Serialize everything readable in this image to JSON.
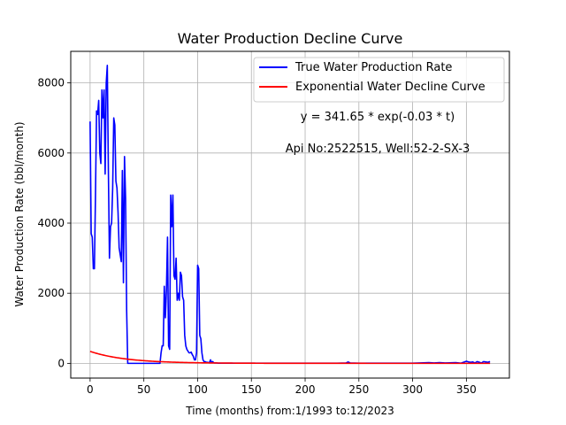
{
  "chart_data": {
    "type": "line",
    "title": "Water Production Decline Curve",
    "xlabel": "Time (months) from:1/1993 to:12/2023",
    "ylabel": "Water Production Rate (bbl/month)",
    "xlim": [
      -18,
      390
    ],
    "ylim": [
      -420,
      8900
    ],
    "xticks": [
      0,
      50,
      100,
      150,
      200,
      250,
      300,
      350
    ],
    "yticks": [
      0,
      2000,
      4000,
      6000,
      8000
    ],
    "grid": true,
    "legend_position": "top-right",
    "annotations": [
      "y = 341.65 * exp(-0.03 * t)",
      "Api No:2522515, Well:52-2-SX-3"
    ],
    "series": [
      {
        "name": "True Water Production Rate",
        "color": "#0000ff",
        "x": [
          0,
          1,
          2,
          3,
          4,
          5,
          6,
          7,
          8,
          9,
          10,
          11,
          12,
          13,
          14,
          15,
          16,
          17,
          18,
          19,
          20,
          21,
          22,
          23,
          24,
          25,
          26,
          27,
          28,
          29,
          30,
          31,
          32,
          33,
          34,
          35,
          36,
          37,
          38,
          39,
          40,
          41,
          42,
          45,
          50,
          55,
          60,
          65,
          66,
          67,
          68,
          69,
          70,
          71,
          72,
          73,
          74,
          75,
          76,
          77,
          78,
          79,
          80,
          81,
          82,
          83,
          84,
          85,
          86,
          87,
          88,
          89,
          90,
          91,
          92,
          93,
          94,
          95,
          96,
          97,
          98,
          99,
          100,
          101,
          102,
          103,
          104,
          105,
          106,
          107,
          108,
          109,
          110,
          111,
          112,
          113,
          114,
          115,
          116,
          117,
          118,
          119,
          120,
          122,
          125,
          130,
          140,
          150,
          160,
          170,
          180,
          190,
          200,
          210,
          220,
          230,
          238,
          240,
          242,
          250,
          260,
          270,
          280,
          290,
          300,
          310,
          315,
          320,
          325,
          330,
          340,
          345,
          350,
          352,
          354,
          356,
          358,
          360,
          362,
          364,
          366,
          368,
          370,
          372
        ],
        "y": [
          6900,
          3700,
          3600,
          2700,
          2700,
          4800,
          7200,
          7100,
          7500,
          6000,
          5700,
          7800,
          7000,
          7800,
          5400,
          8000,
          8500,
          5500,
          3000,
          3900,
          4000,
          5000,
          7000,
          6800,
          5200,
          5000,
          4300,
          3300,
          3100,
          2900,
          5500,
          2300,
          5900,
          4700,
          1500,
          0,
          0,
          0,
          0,
          0,
          0,
          0,
          0,
          0,
          0,
          0,
          0,
          0,
          300,
          500,
          500,
          2200,
          1300,
          2100,
          3600,
          500,
          400,
          4800,
          3900,
          4800,
          2500,
          2400,
          3000,
          1800,
          2000,
          1800,
          2600,
          2500,
          1900,
          1800,
          800,
          500,
          400,
          350,
          300,
          300,
          320,
          250,
          200,
          100,
          100,
          300,
          2800,
          2700,
          800,
          700,
          300,
          100,
          50,
          50,
          30,
          30,
          20,
          20,
          100,
          20,
          50,
          20,
          10,
          10,
          10,
          5,
          5,
          5,
          5,
          5,
          5,
          5,
          5,
          5,
          5,
          5,
          5,
          5,
          5,
          5,
          10,
          40,
          10,
          5,
          5,
          5,
          5,
          5,
          5,
          15,
          20,
          10,
          20,
          10,
          20,
          5,
          60,
          40,
          30,
          40,
          10,
          50,
          30,
          10,
          50,
          40,
          30,
          50
        ]
      },
      {
        "name": "Exponential Water Decline Curve",
        "color": "#ff0000",
        "function": "341.65 * exp(-0.03 * t)",
        "x_range": [
          0,
          372
        ]
      }
    ]
  }
}
